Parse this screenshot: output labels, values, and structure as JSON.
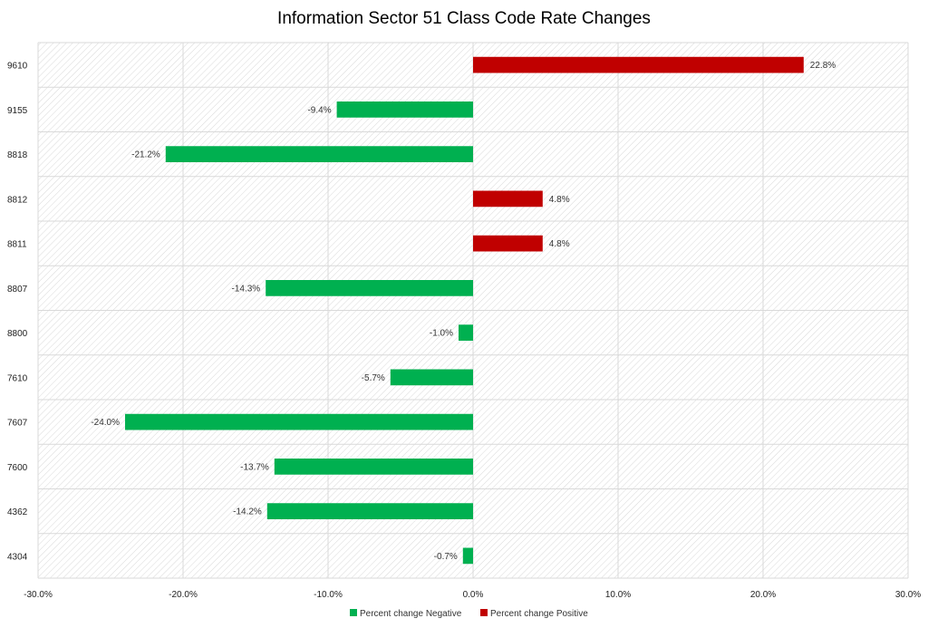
{
  "chart_data": {
    "type": "bar",
    "orientation": "horizontal",
    "title": "Information Sector 51 Class Code Rate Changes",
    "categories": [
      "9610",
      "9155",
      "8818",
      "8812",
      "8811",
      "8807",
      "8800",
      "7610",
      "7607",
      "7600",
      "4362",
      "4304"
    ],
    "values": [
      22.8,
      -9.4,
      -21.2,
      4.8,
      4.8,
      -14.3,
      -1.0,
      -5.7,
      -24.0,
      -13.7,
      -14.2,
      -0.7
    ],
    "data_labels": [
      "22.8%",
      "-9.4%",
      "-21.2%",
      "4.8%",
      "4.8%",
      "-14.3%",
      "-1.0%",
      "-5.7%",
      "-24.0%",
      "-13.7%",
      "-14.2%",
      "-0.7%"
    ],
    "series": [
      {
        "name": "Percent change Negative",
        "color": "#00b050"
      },
      {
        "name": "Percent change Positive",
        "color": "#c00000"
      }
    ],
    "xlim": [
      -30,
      30
    ],
    "x_ticks": [
      -30,
      -20,
      -10,
      0,
      10,
      20,
      30
    ],
    "x_tick_labels": [
      "-30.0%",
      "-20.0%",
      "-10.0%",
      "0.0%",
      "10.0%",
      "20.0%",
      "30.0%"
    ],
    "grid": true,
    "plot_background": "hatched",
    "legend_position": "bottom"
  }
}
